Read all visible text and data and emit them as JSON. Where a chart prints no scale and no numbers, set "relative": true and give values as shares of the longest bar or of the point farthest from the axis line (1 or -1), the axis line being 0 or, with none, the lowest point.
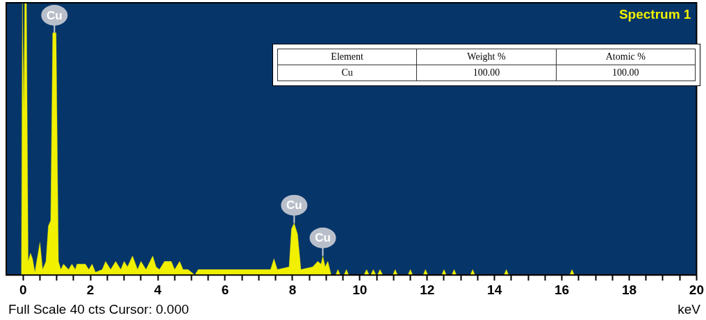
{
  "chart_data": {
    "type": "area",
    "title": "Spectrum 1",
    "xlabel": "keV",
    "relative": true,
    "color": "#f0f000",
    "x": [
      -0.5,
      -0.05,
      -0.02,
      0.02,
      0.05,
      0.1,
      0.15,
      0.22,
      0.28,
      0.35,
      0.5,
      0.58,
      0.68,
      0.75,
      0.82,
      0.88,
      0.93,
      0.98,
      1.05,
      1.12,
      1.2,
      1.35,
      1.45,
      1.55,
      1.6,
      1.85,
      1.95,
      2.05,
      2.15,
      2.35,
      2.45,
      2.6,
      2.75,
      2.9,
      3.0,
      3.1,
      3.25,
      3.4,
      3.5,
      3.65,
      3.85,
      3.95,
      4.05,
      4.2,
      4.4,
      4.5,
      4.65,
      4.75,
      4.9,
      5.1,
      5.2,
      7.35,
      7.45,
      7.55,
      7.9,
      7.97,
      8.05,
      8.15,
      8.25,
      8.6,
      8.75,
      8.85,
      8.9,
      8.97,
      9.05,
      9.15,
      9.28,
      9.35,
      9.42,
      9.53,
      9.6,
      9.67,
      10.12,
      10.2,
      10.28,
      10.32,
      10.4,
      10.48,
      10.52,
      10.6,
      10.68,
      10.98,
      11.05,
      11.12,
      11.43,
      11.5,
      11.57,
      11.88,
      11.95,
      12.02,
      12.43,
      12.5,
      12.57,
      12.73,
      12.8,
      12.87,
      13.28,
      13.35,
      13.42,
      14.28,
      14.35,
      14.42,
      16.23,
      16.3,
      16.37,
      20
    ],
    "values": [
      0,
      0,
      1,
      0.6,
      1,
      1,
      0.05,
      0.08,
      0.06,
      0.01,
      0.12,
      0.02,
      0.05,
      0.18,
      0.2,
      0.89,
      0.89,
      0.89,
      0.05,
      0.02,
      0.04,
      0.02,
      0.04,
      0.02,
      0.04,
      0.04,
      0.02,
      0.04,
      0.01,
      0.02,
      0.05,
      0.02,
      0.05,
      0.02,
      0.05,
      0.03,
      0.07,
      0.02,
      0.05,
      0.02,
      0.07,
      0.03,
      0.02,
      0.05,
      0.05,
      0.02,
      0.05,
      0.02,
      0.02,
      0.0,
      0.02,
      0.02,
      0.06,
      0.02,
      0.03,
      0.17,
      0.19,
      0.15,
      0.02,
      0.03,
      0.05,
      0.04,
      0.07,
      0.03,
      0.05,
      0.0,
      0,
      0.02,
      0,
      0,
      0.02,
      0,
      0,
      0.02,
      0,
      0,
      0.02,
      0,
      0,
      0.02,
      0,
      0,
      0.02,
      0,
      0,
      0.02,
      0,
      0,
      0.02,
      0,
      0,
      0.02,
      0,
      0,
      0.02,
      0,
      0,
      0.02,
      0,
      0,
      0.02,
      0,
      0,
      0.02,
      0,
      0
    ],
    "xlim": [
      -0.5,
      20
    ],
    "xticks": [
      0,
      {
        "value": 0.5,
        "label": null
      },
      {
        "value": 1,
        "label": null
      },
      {
        "value": 1.5,
        "label": null
      },
      2,
      {
        "value": 2.5,
        "label": null
      },
      {
        "value": 3,
        "label": null
      },
      {
        "value": 3.5,
        "label": null
      },
      4,
      {
        "value": 4.5,
        "label": null
      },
      {
        "value": 5,
        "label": null
      },
      {
        "value": 5.5,
        "label": null
      },
      6,
      {
        "value": 6.5,
        "label": null
      },
      {
        "value": 7,
        "label": null
      },
      {
        "value": 7.5,
        "label": null
      },
      8,
      {
        "value": 8.5,
        "label": null
      },
      {
        "value": 9,
        "label": null
      },
      {
        "value": 9.5,
        "label": null
      },
      10,
      {
        "value": 10.5,
        "label": null
      },
      {
        "value": 11,
        "label": null
      },
      {
        "value": 11.5,
        "label": null
      },
      12,
      {
        "value": 12.5,
        "label": null
      },
      {
        "value": 13,
        "label": null
      },
      {
        "value": 13.5,
        "label": null
      },
      14,
      {
        "value": 14.5,
        "label": null
      },
      {
        "value": 15,
        "label": null
      },
      {
        "value": 15.5,
        "label": null
      },
      16,
      {
        "value": 16.5,
        "label": null
      },
      {
        "value": 17,
        "label": null
      },
      {
        "value": 17.5,
        "label": null
      },
      18,
      {
        "value": 18.5,
        "label": null
      },
      {
        "value": 19,
        "label": null
      },
      {
        "value": 19.5,
        "label": null
      },
      20
    ],
    "grid": false,
    "legend": false,
    "marker": "none",
    "annotations": [
      {
        "text": "Cu",
        "x": 0.93,
        "y": 0.89
      },
      {
        "text": "Cu",
        "x": 8.05,
        "y": 0.19
      },
      {
        "text": "Cu",
        "x": 8.9,
        "y": 0.07
      },
      "Full Scale 40 cts Cursor: 0.000",
      "Element",
      "Weight %",
      "Atomic %",
      "Cu",
      "100.00",
      "100.00"
    ]
  }
}
